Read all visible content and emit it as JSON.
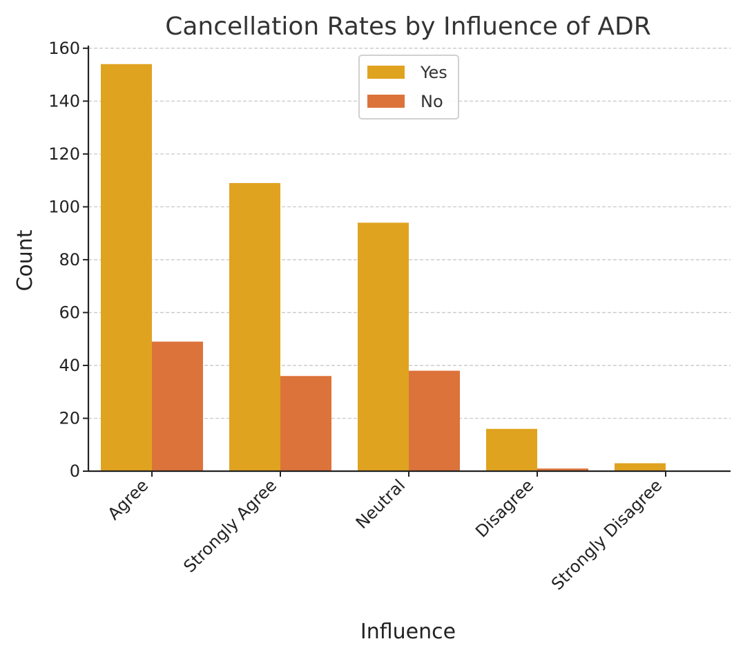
{
  "chart_data": {
    "type": "bar",
    "title": "Cancellation Rates by Influence of ADR",
    "xlabel": "Influence",
    "ylabel": "Count",
    "categories": [
      "Agree",
      "Strongly Agree",
      "Neutral",
      "Disagree",
      "Strongly Disagree"
    ],
    "series": [
      {
        "name": "Yes",
        "color": "#E0A320",
        "values": [
          154,
          109,
          94,
          16,
          3
        ]
      },
      {
        "name": "No",
        "color": "#DC733A",
        "values": [
          49,
          36,
          38,
          1,
          0
        ]
      }
    ],
    "ylim": [
      0,
      161
    ],
    "yticks": [
      0,
      20,
      40,
      60,
      80,
      100,
      120,
      140,
      160
    ],
    "grid": true,
    "legend_position": "top-center"
  }
}
